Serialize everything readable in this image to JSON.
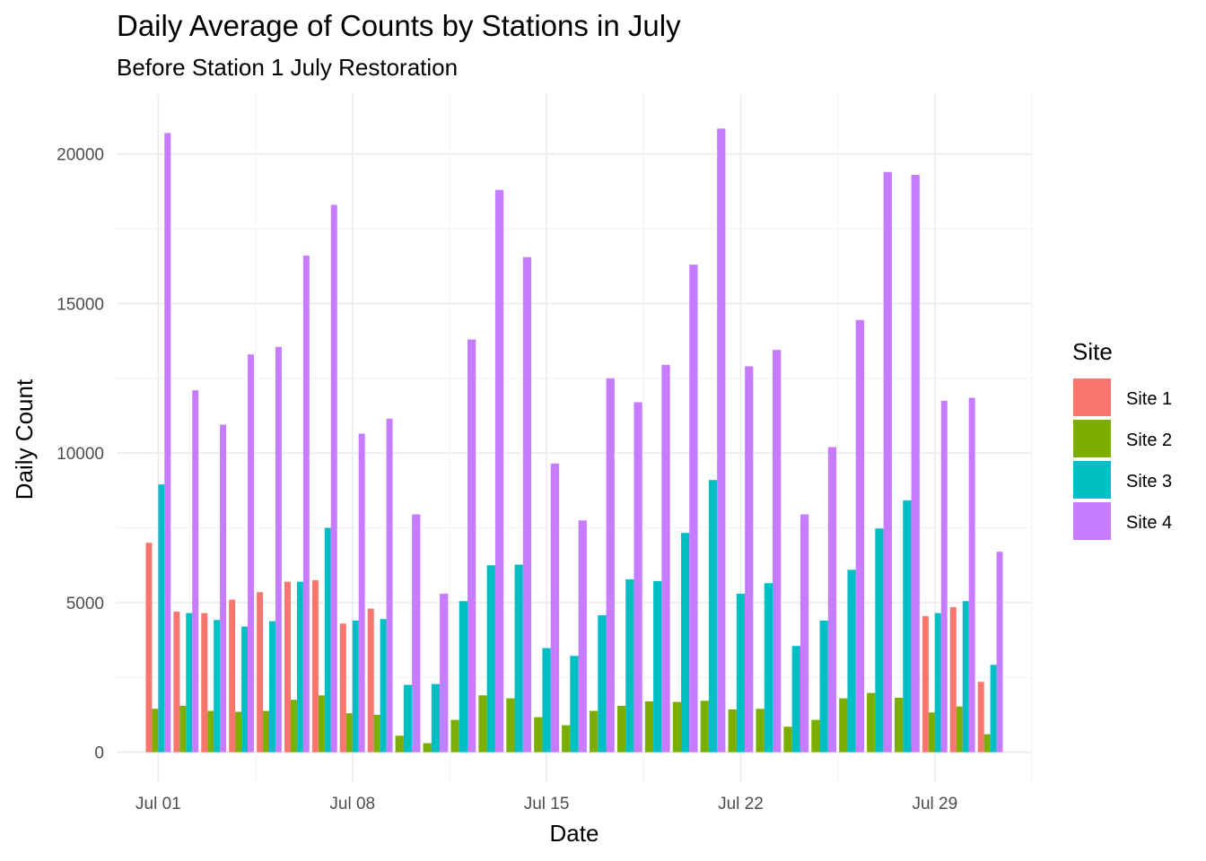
{
  "chart_data": {
    "type": "bar",
    "title": "Daily Average of Counts by Stations in July",
    "subtitle": "Before Station 1 July Restoration",
    "xlabel": "Date",
    "ylabel": "Daily Count",
    "ylim": [
      -1000,
      22000
    ],
    "yticks": [
      0,
      5000,
      10000,
      15000,
      20000
    ],
    "x_tick_labels": [
      "Jul 01",
      "Jul 08",
      "Jul 15",
      "Jul 22",
      "Jul 29"
    ],
    "x_tick_days": [
      1,
      8,
      15,
      22,
      29
    ],
    "xlim_days": [
      -0.5,
      32.5
    ],
    "grid": true,
    "legend": {
      "title": "Site",
      "position": "right"
    },
    "categories": [
      "Jul 01",
      "Jul 02",
      "Jul 03",
      "Jul 04",
      "Jul 05",
      "Jul 06",
      "Jul 07",
      "Jul 08",
      "Jul 09",
      "Jul 10",
      "Jul 11",
      "Jul 12",
      "Jul 13",
      "Jul 14",
      "Jul 15",
      "Jul 16",
      "Jul 17",
      "Jul 18",
      "Jul 19",
      "Jul 20",
      "Jul 21",
      "Jul 22",
      "Jul 23",
      "Jul 24",
      "Jul 25",
      "Jul 26",
      "Jul 27",
      "Jul 28",
      "Jul 29",
      "Jul 30",
      "Jul 31"
    ],
    "series": [
      {
        "name": "Site 1",
        "color": "#F8766D",
        "values": [
          7000,
          4700,
          4650,
          5100,
          5350,
          5700,
          5750,
          4300,
          4800,
          null,
          null,
          null,
          null,
          null,
          null,
          null,
          null,
          null,
          null,
          null,
          null,
          null,
          null,
          null,
          null,
          null,
          null,
          null,
          4550,
          4850,
          2350
        ]
      },
      {
        "name": "Site 2",
        "color": "#7CAE00",
        "values": [
          1450,
          1550,
          1380,
          1350,
          1380,
          1750,
          1900,
          1300,
          1250,
          550,
          300,
          1080,
          1900,
          1800,
          1170,
          900,
          1380,
          1550,
          1700,
          1680,
          1720,
          1430,
          1450,
          850,
          1080,
          1800,
          1980,
          1820,
          1330,
          1530,
          600
        ]
      },
      {
        "name": "Site 3",
        "color": "#00BFC4",
        "values": [
          8950,
          4650,
          4420,
          4200,
          4380,
          5700,
          7500,
          4400,
          4450,
          2250,
          2280,
          5050,
          6250,
          6270,
          3480,
          3220,
          4580,
          5780,
          5720,
          7330,
          9100,
          5300,
          5650,
          3550,
          4400,
          6100,
          7480,
          8420,
          4650,
          5050,
          2920
        ]
      },
      {
        "name": "Site 4",
        "color": "#C77CFF",
        "values": [
          20700,
          12100,
          10950,
          13300,
          13550,
          16600,
          18300,
          10650,
          11150,
          7950,
          5300,
          13800,
          18800,
          16550,
          9650,
          7750,
          12500,
          11700,
          12950,
          16300,
          20850,
          12900,
          13450,
          7950,
          10200,
          14450,
          19400,
          19300,
          11750,
          11850,
          6700
        ]
      }
    ]
  }
}
